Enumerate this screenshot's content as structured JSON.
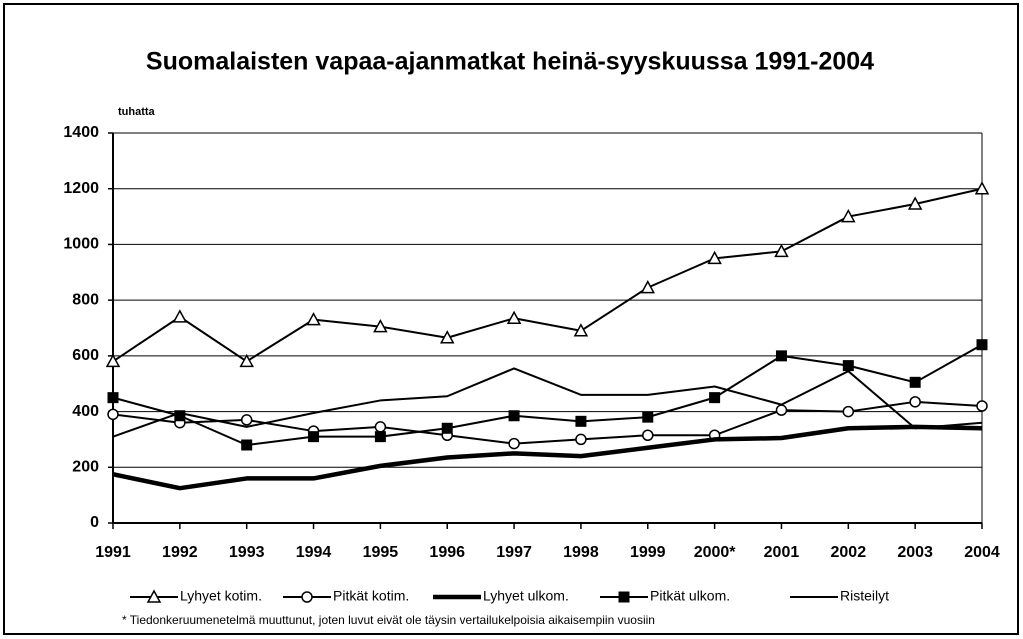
{
  "chart_data": {
    "type": "line",
    "title": "Suomalaisten vapaa-ajanmatkat heinä-syyskuussa 1991-2004",
    "y_axis_label": "tuhatta",
    "footnote": "* Tiedonkeruumenetelmä muuttunut, joten luvut eivät ole täysin vertailukelpoisia aikaisempiin vuosiin",
    "categories": [
      "1991",
      "1992",
      "1993",
      "1994",
      "1995",
      "1996",
      "1997",
      "1998",
      "1999",
      "2000*",
      "2001",
      "2002",
      "2003",
      "2004"
    ],
    "ylim": [
      0,
      1400
    ],
    "yticks": [
      0,
      200,
      400,
      600,
      800,
      1000,
      1200,
      1400
    ],
    "grid": true,
    "legend": "bottom",
    "series": [
      {
        "name": "Lyhyet kotim.",
        "color": "#000000",
        "marker": "triangle",
        "values": [
          580,
          740,
          580,
          730,
          705,
          665,
          735,
          690,
          845,
          950,
          975,
          1100,
          1145,
          1200
        ]
      },
      {
        "name": "Pitkät kotim.",
        "color": "#000000",
        "marker": "circle",
        "values": [
          390,
          360,
          370,
          330,
          345,
          315,
          285,
          300,
          315,
          315,
          405,
          400,
          435,
          420
        ]
      },
      {
        "name": "Lyhyet ulkom.",
        "color": "#000000",
        "marker": "none",
        "line_width": "thick",
        "values": [
          175,
          125,
          160,
          160,
          205,
          235,
          250,
          240,
          270,
          300,
          305,
          340,
          345,
          340
        ]
      },
      {
        "name": "Pitkät ulkom.",
        "color": "#000000",
        "marker": "square",
        "values": [
          450,
          385,
          280,
          310,
          310,
          340,
          385,
          365,
          380,
          450,
          600,
          565,
          505,
          640
        ]
      },
      {
        "name": "Risteilyt",
        "color": "#000000",
        "marker": "none",
        "values": [
          310,
          395,
          345,
          395,
          440,
          455,
          555,
          460,
          460,
          490,
          425,
          545,
          340,
          360
        ]
      }
    ]
  }
}
